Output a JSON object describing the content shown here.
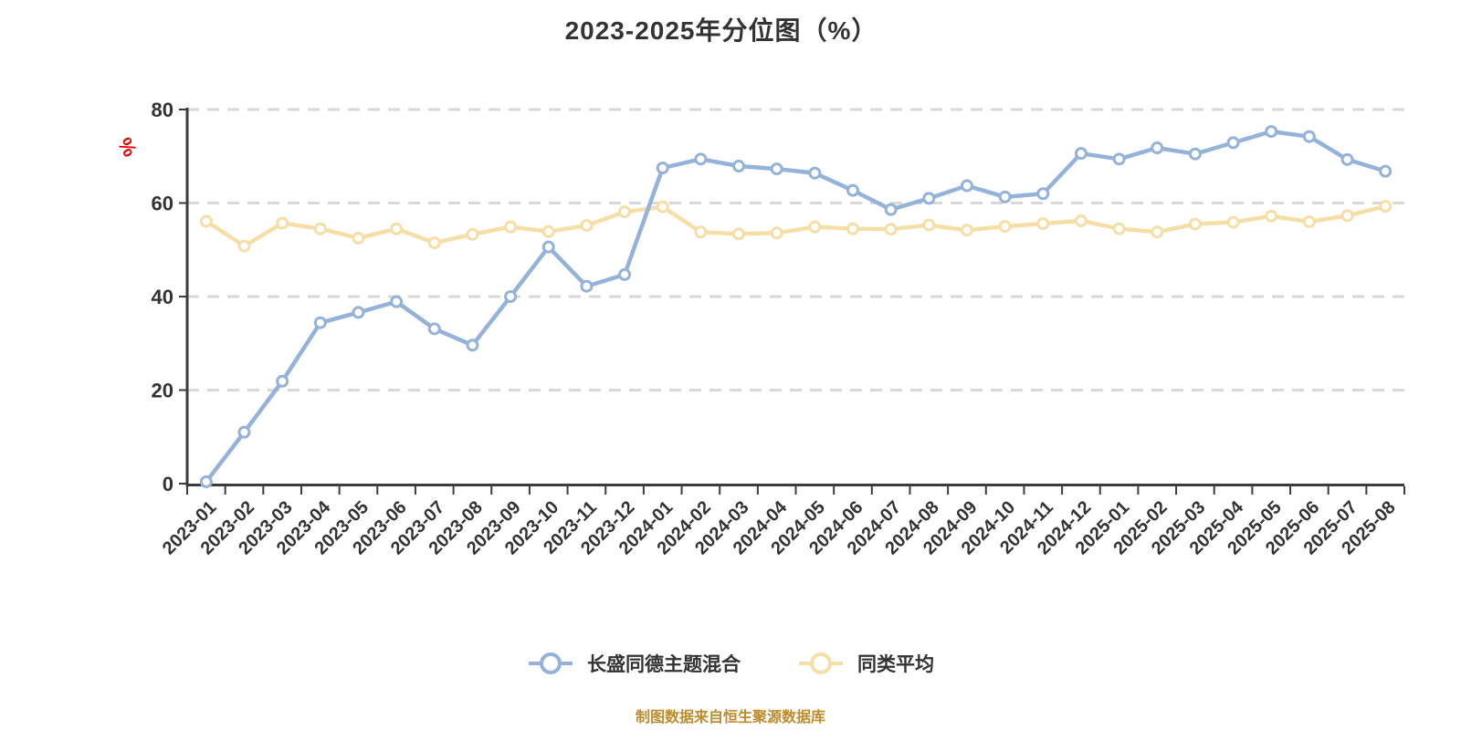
{
  "title": "2023-2025年分位图（%）",
  "footer": "制图数据来自恒生聚源数据库",
  "colors": {
    "fund_line": "#94B2DA",
    "avg_line": "#F6DFA7",
    "marker_fill": "#FFFFFF",
    "grid": "#D8D8D8",
    "axis": "#3C3C3C",
    "tick_label": "#333333",
    "unit_label": "#E00000",
    "footer_text": "#BE8B2D",
    "background": "#FFFFFF"
  },
  "chart_data": {
    "type": "line",
    "title": "2023-2025年分位图（%）",
    "xlabel": "",
    "ylabel": "%",
    "ylim": [
      0,
      80
    ],
    "yticks": [
      0,
      20,
      40,
      60,
      80
    ],
    "grid": "horizontal-dashed",
    "legend_position": "bottom",
    "x_label_rotation": 45,
    "categories": [
      "2023-01",
      "2023-02",
      "2023-03",
      "2023-04",
      "2023-05",
      "2023-06",
      "2023-07",
      "2023-08",
      "2023-09",
      "2023-10",
      "2023-11",
      "2023-12",
      "2024-01",
      "2024-02",
      "2024-03",
      "2024-04",
      "2024-05",
      "2024-06",
      "2024-07",
      "2024-08",
      "2024-09",
      "2024-10",
      "2024-11",
      "2024-12",
      "2025-01",
      "2025-02",
      "2025-03",
      "2025-04",
      "2025-05",
      "2025-06",
      "2025-07",
      "2025-08"
    ],
    "series": [
      {
        "name": "长盛同德主题混合",
        "color": "#94B2DA",
        "values": [
          0.4,
          11.0,
          21.9,
          34.4,
          36.6,
          38.9,
          33.1,
          29.6,
          40.0,
          50.6,
          42.2,
          44.7,
          67.5,
          69.4,
          67.9,
          67.3,
          66.4,
          62.7,
          58.6,
          61.0,
          63.7,
          61.3,
          62.0,
          70.6,
          69.4,
          71.8,
          70.5,
          72.9,
          75.3,
          74.2,
          69.3,
          66.8
        ]
      },
      {
        "name": "同类平均",
        "color": "#F6DFA7",
        "values": [
          56.1,
          50.8,
          55.7,
          54.5,
          52.5,
          54.5,
          51.5,
          53.3,
          54.9,
          53.9,
          55.2,
          58.1,
          59.2,
          53.8,
          53.4,
          53.6,
          54.9,
          54.5,
          54.4,
          55.3,
          54.2,
          55.0,
          55.6,
          56.2,
          54.5,
          53.8,
          55.5,
          55.9,
          57.2,
          56.0,
          57.3,
          59.3
        ]
      }
    ]
  }
}
